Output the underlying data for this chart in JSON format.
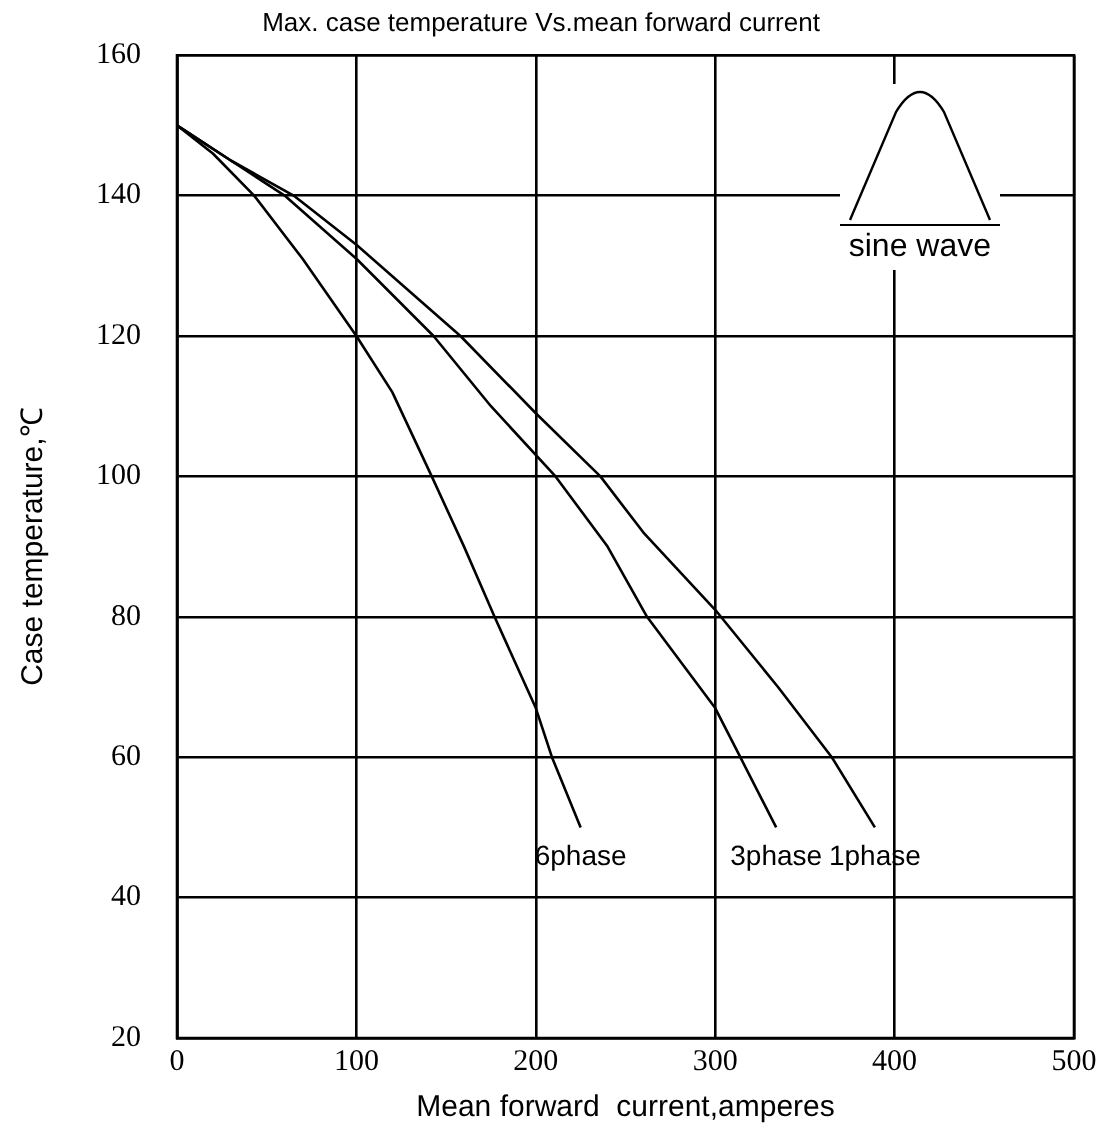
{
  "chart_data": {
    "type": "line",
    "title": "Max. case temperature Vs.mean forward current",
    "xlabel": "Mean forward  current,amperes",
    "ylabel": "Case temperature,℃",
    "xlim": [
      0,
      500
    ],
    "xticks": [
      0,
      100,
      200,
      300,
      400,
      500
    ],
    "ylim": [
      20,
      160
    ],
    "yticks": [
      20,
      40,
      60,
      80,
      100,
      120,
      140,
      160
    ],
    "grid": true,
    "legend": false,
    "marker": "none",
    "line_style": "solid",
    "annotations": [
      "sine wave"
    ],
    "series": [
      {
        "name": "6phase",
        "color": "#000000",
        "x": [
          0,
          20,
          43,
          70,
          100,
          120,
          142,
          160,
          177,
          200,
          209,
          225
        ],
        "values": [
          150,
          146,
          140,
          131,
          120,
          112,
          100,
          90,
          80,
          67,
          60,
          50
        ]
      },
      {
        "name": "3phase",
        "color": "#000000",
        "x": [
          0,
          30,
          60,
          100,
          143,
          175,
          211,
          240,
          262,
          300,
          314,
          334
        ],
        "values": [
          150,
          145,
          140,
          131,
          120,
          110,
          100,
          90,
          80,
          67,
          60,
          50
        ]
      },
      {
        "name": "1phase",
        "color": "#000000",
        "x": [
          0,
          30,
          65,
          100,
          158,
          200,
          236,
          260,
          300,
          335,
          365,
          389
        ],
        "values": [
          150,
          145,
          140,
          133,
          120,
          109,
          100,
          92,
          81,
          70,
          60,
          50
        ]
      }
    ]
  }
}
